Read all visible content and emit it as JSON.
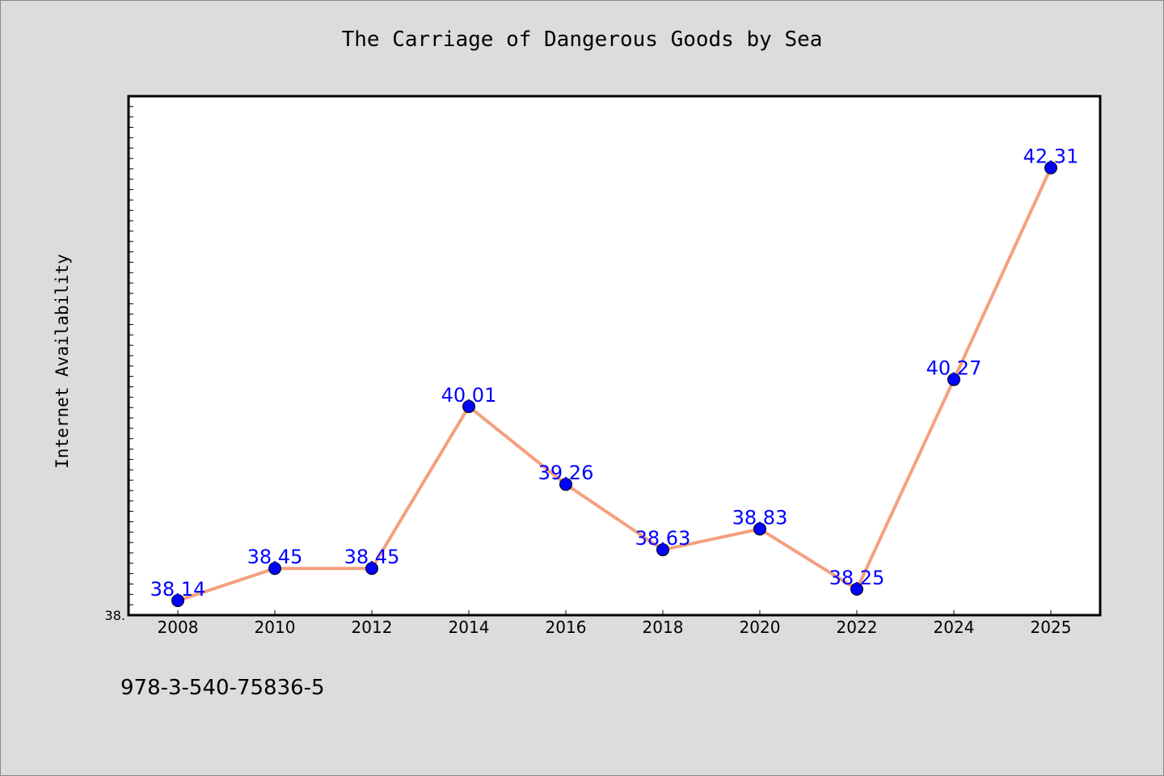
{
  "chart_data": {
    "type": "line",
    "title": "The Carriage of Dangerous Goods by Sea",
    "xlabel": "",
    "ylabel": "Internet Availability",
    "categories": [
      "2008",
      "2010",
      "2012",
      "2014",
      "2016",
      "2018",
      "2020",
      "2022",
      "2024",
      "2025"
    ],
    "series": [
      {
        "values": [
          38.14,
          38.45,
          38.45,
          40.01,
          39.26,
          38.63,
          38.83,
          38.25,
          40.27,
          42.31
        ]
      }
    ],
    "data_labels": [
      "38.14",
      "38.45",
      "38.45",
      "40.01",
      "39.26",
      "38.63",
      "38.83",
      "38.25",
      "40.27",
      "42.31"
    ],
    "ylim": [
      38.0,
      43.0
    ],
    "y_tick_label": "38.",
    "grid": false,
    "line_color": "#f4a07e",
    "marker_color": "#0000ff",
    "label_color": "#0000ff"
  },
  "footer": {
    "isbn": "978-3-540-75836-5"
  }
}
